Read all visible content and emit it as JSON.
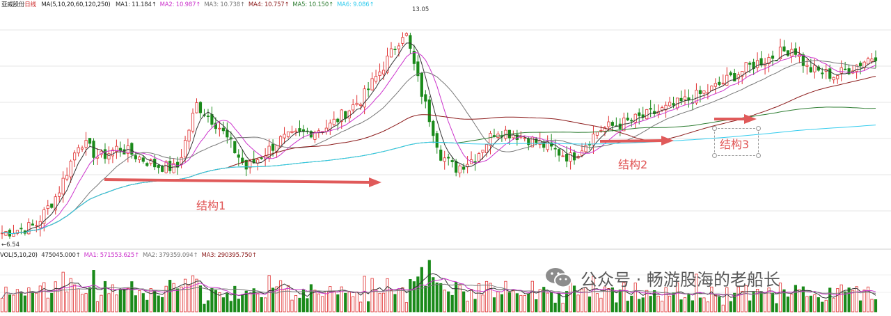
{
  "header": {
    "name": "亚威股份",
    "period": "日线",
    "ma_params": "MA(5,10,20,60,120,250)",
    "items": [
      {
        "label": "MA1: 11.184",
        "color": "#333333"
      },
      {
        "label": "MA2: 10.987",
        "color": "#cc33cc"
      },
      {
        "label": "MA3: 10.738",
        "color": "#777777"
      },
      {
        "label": "MA4: 10.757",
        "color": "#8b1a1a"
      },
      {
        "label": "MA5: 10.150",
        "color": "#2e7d32"
      },
      {
        "label": "MA6: 9.086",
        "color": "#33ccee"
      }
    ]
  },
  "price_marks": {
    "high": "13.05",
    "low": "6.54"
  },
  "volume_header": {
    "params": "VOL(5,10,20)",
    "items": [
      {
        "label": "475045.000",
        "color": "#333333"
      },
      {
        "label": "MA1: 571553.625",
        "color": "#cc33cc"
      },
      {
        "label": "MA2: 379359.094",
        "color": "#777777"
      },
      {
        "label": "MA3: 290395.750",
        "color": "#8b1a1a"
      }
    ]
  },
  "annotations": [
    {
      "label": "结构1"
    },
    {
      "label": "结构2"
    },
    {
      "label": "结构3"
    }
  ],
  "watermark": {
    "text": "公众号 · 畅游股海的老船长",
    "icon": "wechat-icon"
  },
  "chart_data": {
    "type": "candlestick",
    "price_range": [
      6.54,
      13.05
    ],
    "candle_count": 230,
    "up_color": "#e03030",
    "down_color": "#1a8a1a",
    "ma_colors": [
      "#333333",
      "#cc33cc",
      "#777777",
      "#8b1a1a",
      "#2e7d32",
      "#33ccee"
    ],
    "anchors": [
      [
        0,
        6.8
      ],
      [
        12,
        7.0
      ],
      [
        20,
        7.9
      ],
      [
        28,
        9.4
      ],
      [
        35,
        8.9
      ],
      [
        42,
        9.2
      ],
      [
        55,
        8.7
      ],
      [
        63,
        8.6
      ],
      [
        70,
        10.4
      ],
      [
        78,
        9.8
      ],
      [
        88,
        8.6
      ],
      [
        100,
        9.4
      ],
      [
        118,
        9.8
      ],
      [
        130,
        10.6
      ],
      [
        140,
        11.8
      ],
      [
        145,
        12.5
      ],
      [
        150,
        11.0
      ],
      [
        158,
        9.0
      ],
      [
        163,
        8.6
      ],
      [
        170,
        8.9
      ],
      [
        178,
        9.7
      ],
      [
        188,
        9.5
      ],
      [
        205,
        8.9
      ],
      [
        215,
        9.7
      ],
      [
        225,
        9.9
      ],
      [
        240,
        10.3
      ],
      [
        255,
        10.8
      ],
      [
        270,
        11.5
      ],
      [
        285,
        12.0
      ],
      [
        290,
        11.4
      ],
      [
        300,
        11.2
      ],
      [
        315,
        11.8
      ]
    ]
  }
}
